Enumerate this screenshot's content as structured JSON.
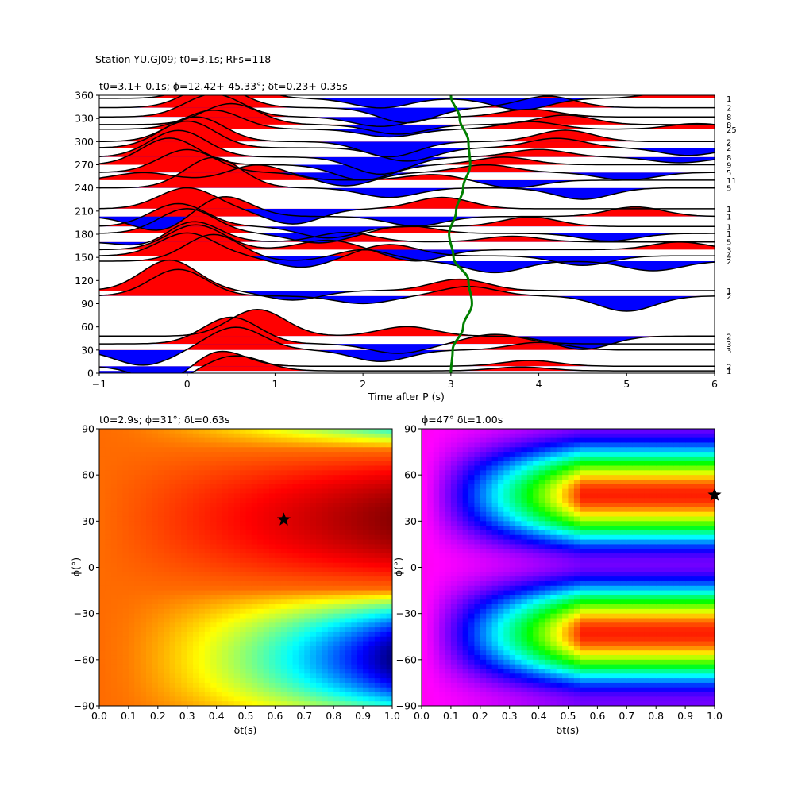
{
  "figure": {
    "suptitle": "Station YU.GJ09; t0=3.1s; RFs=118"
  },
  "chart_data": [
    {
      "type": "line",
      "name": "receiver-function-traces",
      "title": "t0=3.1+-0.1s; ϕ=12.42+-45.33°; δt=0.23+-0.35s",
      "xlabel": "Time after P (s)",
      "ylabel": "",
      "xlim": [
        -1,
        6
      ],
      "ylim": [
        0,
        360
      ],
      "xticks": [
        -1,
        0,
        1,
        2,
        3,
        4,
        5,
        6
      ],
      "yticks": [
        0,
        30,
        60,
        90,
        120,
        150,
        180,
        210,
        240,
        270,
        300,
        330,
        360
      ],
      "positive_fill": "#ff0000",
      "negative_fill": "#0000ff",
      "trace_color": "#000000",
      "delay_curve_color": "#008000",
      "delay_curve": {
        "baz": [
          0,
          30,
          60,
          90,
          120,
          150,
          180,
          210,
          240,
          270,
          300,
          330,
          360
        ],
        "t": [
          3.0,
          3.02,
          3.14,
          3.24,
          3.2,
          3.03,
          2.98,
          3.06,
          3.14,
          3.22,
          3.2,
          3.1,
          3.0
        ]
      },
      "traces": [
        {
          "baz": 3,
          "count": "1",
          "peaks": [
            [
              -0.45,
              -12
            ],
            [
              0.55,
              8
            ],
            [
              3.8,
              2
            ]
          ]
        },
        {
          "baz": 9,
          "count": "2",
          "peaks": [
            [
              -0.2,
              -10
            ],
            [
              0.3,
              10
            ],
            [
              3.9,
              3
            ]
          ]
        },
        {
          "baz": 30,
          "count": "3",
          "peaks": [
            [
              -0.5,
              -8
            ],
            [
              0.55,
              12
            ],
            [
              2.2,
              -6
            ],
            [
              4.0,
              4
            ]
          ]
        },
        {
          "baz": 38,
          "count": "3",
          "peaks": [
            [
              0.5,
              14
            ],
            [
              2.4,
              -5
            ],
            [
              3.5,
              5
            ]
          ]
        },
        {
          "baz": 48,
          "count": "2",
          "peaks": [
            [
              0.8,
              14
            ],
            [
              2.5,
              5
            ],
            [
              4.5,
              -7
            ]
          ]
        },
        {
          "baz": 100,
          "count": "2",
          "peaks": [
            [
              -0.1,
              14
            ],
            [
              2.0,
              -4
            ],
            [
              3.2,
              5
            ],
            [
              5.0,
              -8
            ]
          ]
        },
        {
          "baz": 107,
          "count": "1",
          "peaks": [
            [
              -0.2,
              16
            ],
            [
              1.2,
              -5
            ],
            [
              3.1,
              6
            ]
          ]
        },
        {
          "baz": 145,
          "count": "2",
          "peaks": [
            [
              0.3,
              14
            ],
            [
              2.0,
              6
            ],
            [
              3.5,
              -6
            ],
            [
              5.3,
              -5
            ]
          ]
        },
        {
          "baz": 152,
          "count": "4",
          "peaks": [
            [
              0.0,
              12
            ],
            [
              1.3,
              -6
            ],
            [
              2.3,
              6
            ],
            [
              4.5,
              -5
            ]
          ]
        },
        {
          "baz": 160,
          "count": "3",
          "peaks": [
            [
              0.1,
              13
            ],
            [
              1.6,
              5
            ],
            [
              2.6,
              -6
            ],
            [
              5.6,
              4
            ]
          ]
        },
        {
          "baz": 170,
          "count": "5",
          "peaks": [
            [
              -0.3,
              -6
            ],
            [
              0.0,
              14
            ],
            [
              1.8,
              5
            ],
            [
              3.7,
              3
            ]
          ]
        },
        {
          "baz": 181,
          "count": "1",
          "peaks": [
            [
              0.0,
              13
            ],
            [
              1.5,
              -5
            ],
            [
              2.5,
              4
            ],
            [
              4.8,
              -4
            ]
          ]
        },
        {
          "baz": 190,
          "count": "1",
          "peaks": [
            [
              -0.1,
              12
            ],
            [
              1.6,
              -6
            ],
            [
              3.9,
              5
            ]
          ]
        },
        {
          "baz": 203,
          "count": "1",
          "peaks": [
            [
              -0.3,
              -8
            ],
            [
              0.4,
              11
            ],
            [
              2.6,
              -5
            ],
            [
              5.1,
              5
            ]
          ]
        },
        {
          "baz": 213,
          "count": "1",
          "peaks": [
            [
              0.0,
              11
            ],
            [
              1.2,
              -8
            ],
            [
              2.9,
              6
            ]
          ]
        },
        {
          "baz": 240,
          "count": "5",
          "peaks": [
            [
              0.3,
              16
            ],
            [
              2.3,
              -5
            ],
            [
              4.5,
              -6
            ]
          ]
        },
        {
          "baz": 250,
          "count": "11",
          "peaks": [
            [
              -0.5,
              4
            ],
            [
              0.8,
              8
            ],
            [
              2.8,
              3
            ],
            [
              3.7,
              -4
            ]
          ]
        },
        {
          "baz": 260,
          "count": "5",
          "peaks": [
            [
              0.0,
              12
            ],
            [
              1.8,
              -7
            ],
            [
              3.4,
              4
            ],
            [
              5.0,
              -4
            ]
          ]
        },
        {
          "baz": 270,
          "count": "9",
          "peaks": [
            [
              -0.2,
              14
            ],
            [
              2.0,
              -8
            ],
            [
              3.6,
              4
            ]
          ]
        },
        {
          "baz": 280,
          "count": "8",
          "peaks": [
            [
              -0.1,
              14
            ],
            [
              2.2,
              -9
            ],
            [
              4.0,
              4
            ],
            [
              5.6,
              -3
            ]
          ]
        },
        {
          "baz": 292,
          "count": "2",
          "peaks": [
            [
              0.0,
              14
            ],
            [
              2.5,
              -7
            ],
            [
              4.2,
              5
            ],
            [
              5.7,
              -4
            ]
          ]
        },
        {
          "baz": 300,
          "count": "2",
          "peaks": [
            [
              0.1,
              13
            ],
            [
              2.3,
              -8
            ],
            [
              4.3,
              6
            ]
          ]
        },
        {
          "baz": 316,
          "count": "25",
          "peaks": [
            [
              0.3,
              10
            ],
            [
              2.3,
              -4
            ],
            [
              3.9,
              4
            ],
            [
              5.8,
              3
            ]
          ]
        },
        {
          "baz": 322,
          "count": "8",
          "peaks": [
            [
              0.5,
              11
            ],
            [
              2.4,
              -5
            ],
            [
              4.3,
              5
            ]
          ]
        },
        {
          "baz": 332,
          "count": "8",
          "peaks": [
            [
              0.3,
              12
            ],
            [
              2.2,
              -5
            ],
            [
              3.9,
              4
            ]
          ]
        },
        {
          "baz": 344,
          "count": "2",
          "peaks": [
            [
              0.3,
              12
            ],
            [
              2.5,
              -8
            ],
            [
              4.1,
              6
            ]
          ]
        },
        {
          "baz": 356,
          "count": "1",
          "peaks": [
            [
              0.4,
              14
            ],
            [
              2.2,
              -5
            ],
            [
              3.8,
              -6
            ],
            [
              5.6,
              4
            ]
          ]
        }
      ]
    },
    {
      "type": "heatmap",
      "name": "energy-grid",
      "title": "t0=2.9s; ϕ=31°; δt=0.63s",
      "xlabel": "δt(s)",
      "ylabel": "ϕ(°)",
      "xlim": [
        0,
        1
      ],
      "ylim": [
        -90,
        90
      ],
      "xticks": [
        0.0,
        0.1,
        0.2,
        0.3,
        0.4,
        0.5,
        0.6,
        0.7,
        0.8,
        0.9,
        1.0
      ],
      "yticks": [
        -90,
        -60,
        -30,
        0,
        30,
        60,
        90
      ],
      "colormap": "jet",
      "best": {
        "dt": 0.63,
        "phi": 31
      },
      "marker_color": "#000000"
    },
    {
      "type": "heatmap",
      "name": "cross-correlation-grid",
      "title": "ϕ=47° δt=1.00s",
      "xlabel": "δt(s)",
      "ylabel": "ϕ(°)",
      "xlim": [
        0,
        1
      ],
      "ylim": [
        -90,
        90
      ],
      "xticks": [
        0.0,
        0.1,
        0.2,
        0.3,
        0.4,
        0.5,
        0.6,
        0.7,
        0.8,
        0.9,
        1.0
      ],
      "yticks": [
        -90,
        -60,
        -30,
        0,
        30,
        60,
        90
      ],
      "colormap": "hsv",
      "best": {
        "dt": 1.0,
        "phi": 47
      },
      "marker_color": "#000000"
    }
  ]
}
